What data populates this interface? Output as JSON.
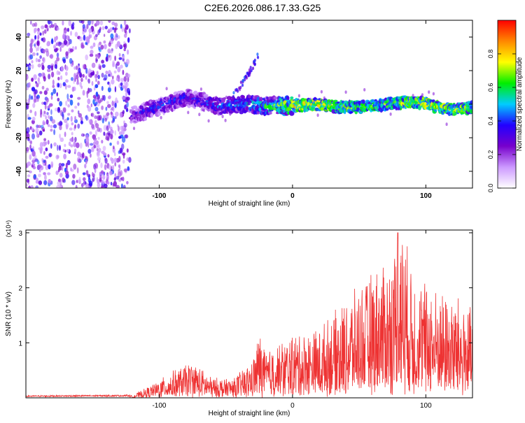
{
  "title": "C2E6.2026.086.17.33.G25",
  "chart_data": [
    {
      "type": "heatmap",
      "xlabel": "Height of straight line (km)",
      "ylabel": "Frequency (Hz)",
      "xlim": [
        -200,
        135
      ],
      "ylim": [
        -50,
        50
      ],
      "x_ticks": [
        -100,
        0,
        100
      ],
      "y_ticks": [
        -40,
        -20,
        0,
        20,
        40
      ],
      "colorbar": {
        "label": "Normalized spectral amplitude",
        "range": [
          0,
          1
        ],
        "ticks": [
          "0.0",
          "0.2",
          "0.4",
          "0.6",
          "0.8"
        ],
        "colors": [
          "#ffffff",
          "#cc99ff",
          "#7700cc",
          "#2200ff",
          "#00ccff",
          "#00ee00",
          "#ffff00",
          "#ff8800",
          "#ff0000"
        ]
      },
      "noise_region_x": [
        -200,
        -122
      ],
      "ridge": [
        {
          "x": -125,
          "y": -8,
          "amp": 0.3
        },
        {
          "x": -110,
          "y": -4,
          "amp": 0.45
        },
        {
          "x": -95,
          "y": 0,
          "amp": 0.45
        },
        {
          "x": -80,
          "y": 4,
          "amp": 0.45
        },
        {
          "x": -70,
          "y": 2,
          "amp": 0.45
        },
        {
          "x": -55,
          "y": -1,
          "amp": 0.5
        },
        {
          "x": -35,
          "y": 0,
          "amp": 0.55
        },
        {
          "x": -20,
          "y": -1,
          "amp": 0.65
        },
        {
          "x": 0,
          "y": -1,
          "amp": 0.85
        },
        {
          "x": 20,
          "y": 0,
          "amp": 0.85
        },
        {
          "x": 40,
          "y": -2,
          "amp": 0.75
        },
        {
          "x": 60,
          "y": -1,
          "amp": 0.7
        },
        {
          "x": 80,
          "y": 1,
          "amp": 0.75
        },
        {
          "x": 95,
          "y": 1,
          "amp": 0.85
        },
        {
          "x": 110,
          "y": -2,
          "amp": 0.8
        },
        {
          "x": 120,
          "y": -3,
          "amp": 0.8
        },
        {
          "x": 135,
          "y": -2,
          "amp": 0.75
        }
      ],
      "streak": [
        {
          "x": -45,
          "y": 5
        },
        {
          "x": -35,
          "y": 15
        },
        {
          "x": -25,
          "y": 30
        }
      ]
    },
    {
      "type": "line",
      "xlabel": "Height of straight line (km)",
      "ylabel": "SNR (10 * v/v)",
      "y_multiplier": "(x10⁴)",
      "xlim": [
        -200,
        135
      ],
      "ylim": [
        0,
        3.05
      ],
      "x_ticks": [
        -100,
        0,
        100
      ],
      "y_ticks": [
        1,
        2,
        3
      ],
      "color": "#ee3333",
      "envelope": [
        {
          "x": -200,
          "y": 0.03
        },
        {
          "x": -120,
          "y": 0.04
        },
        {
          "x": -105,
          "y": 0.2
        },
        {
          "x": -90,
          "y": 0.4
        },
        {
          "x": -75,
          "y": 0.55
        },
        {
          "x": -60,
          "y": 0.3
        },
        {
          "x": -45,
          "y": 0.3
        },
        {
          "x": -30,
          "y": 0.55
        },
        {
          "x": -25,
          "y": 1.0
        },
        {
          "x": -20,
          "y": 0.7
        },
        {
          "x": 0,
          "y": 0.95
        },
        {
          "x": 20,
          "y": 1.05
        },
        {
          "x": 40,
          "y": 1.45
        },
        {
          "x": 60,
          "y": 1.9
        },
        {
          "x": 75,
          "y": 2.1
        },
        {
          "x": 80,
          "y": 2.8
        },
        {
          "x": 90,
          "y": 1.9
        },
        {
          "x": 110,
          "y": 1.6
        },
        {
          "x": 125,
          "y": 1.5
        },
        {
          "x": 135,
          "y": 1.3
        }
      ],
      "peak": {
        "x": 79,
        "y": 3.0
      }
    }
  ]
}
